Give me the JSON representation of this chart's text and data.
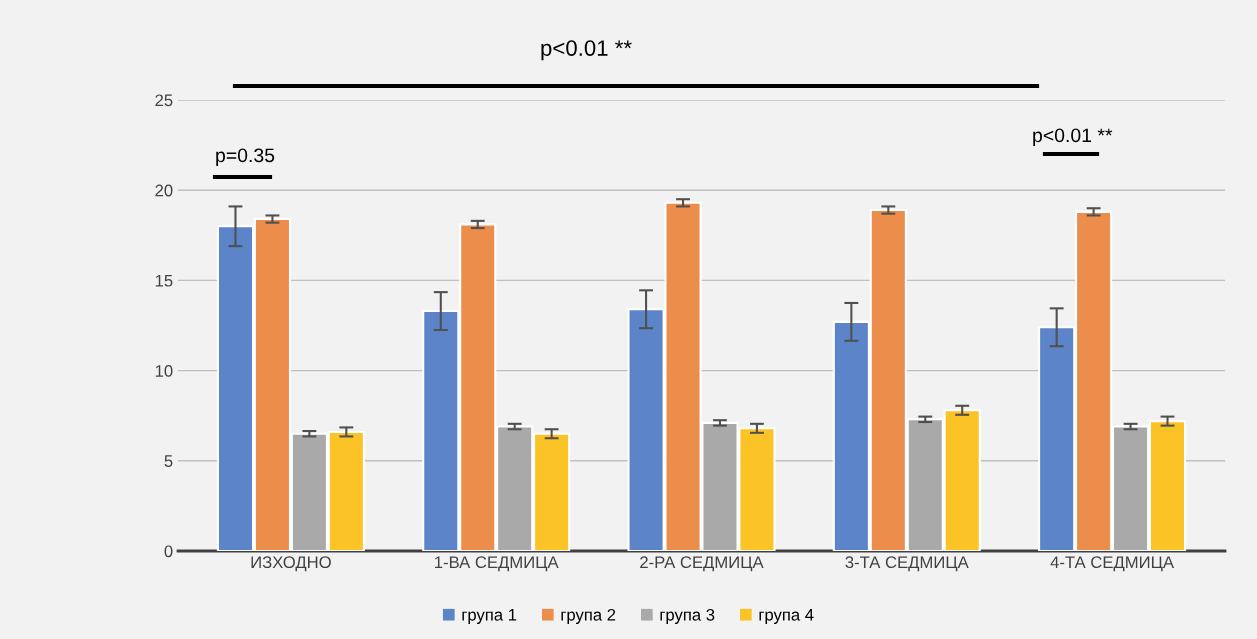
{
  "chart_data": {
    "type": "bar",
    "categories": [
      "ИЗХОДНО",
      "1-ВА СЕДМИЦА",
      "2-РА СЕДМИЦА",
      "3-ТА СЕДМИЦА",
      "4-ТА СЕДМИЦА"
    ],
    "series": [
      {
        "name": "група 1",
        "color": "#5b84c9",
        "values": [
          18.0,
          13.3,
          13.4,
          12.7,
          12.4
        ],
        "errors": [
          1.1,
          1.05,
          1.05,
          1.05,
          1.05
        ]
      },
      {
        "name": "група 2",
        "color": "#ed8d4c",
        "values": [
          18.4,
          18.1,
          19.3,
          18.9,
          18.8
        ],
        "errors": [
          0.2,
          0.2,
          0.2,
          0.2,
          0.2
        ]
      },
      {
        "name": "група 3",
        "color": "#a9a9a9",
        "values": [
          6.5,
          6.9,
          7.1,
          7.3,
          6.9
        ],
        "errors": [
          0.15,
          0.15,
          0.15,
          0.15,
          0.15
        ]
      },
      {
        "name": "група 4",
        "color": "#fcc326",
        "values": [
          6.6,
          6.5,
          6.8,
          7.8,
          7.2
        ],
        "errors": [
          0.25,
          0.25,
          0.25,
          0.25,
          0.25
        ]
      }
    ],
    "ylim": [
      0,
      25
    ],
    "yticks": [
      0,
      5,
      10,
      15,
      20,
      25
    ],
    "grid": "y",
    "legend": "bottom",
    "annotations": [
      "p<0.01 **",
      "p=0.35",
      "p<0.01 **"
    ]
  }
}
